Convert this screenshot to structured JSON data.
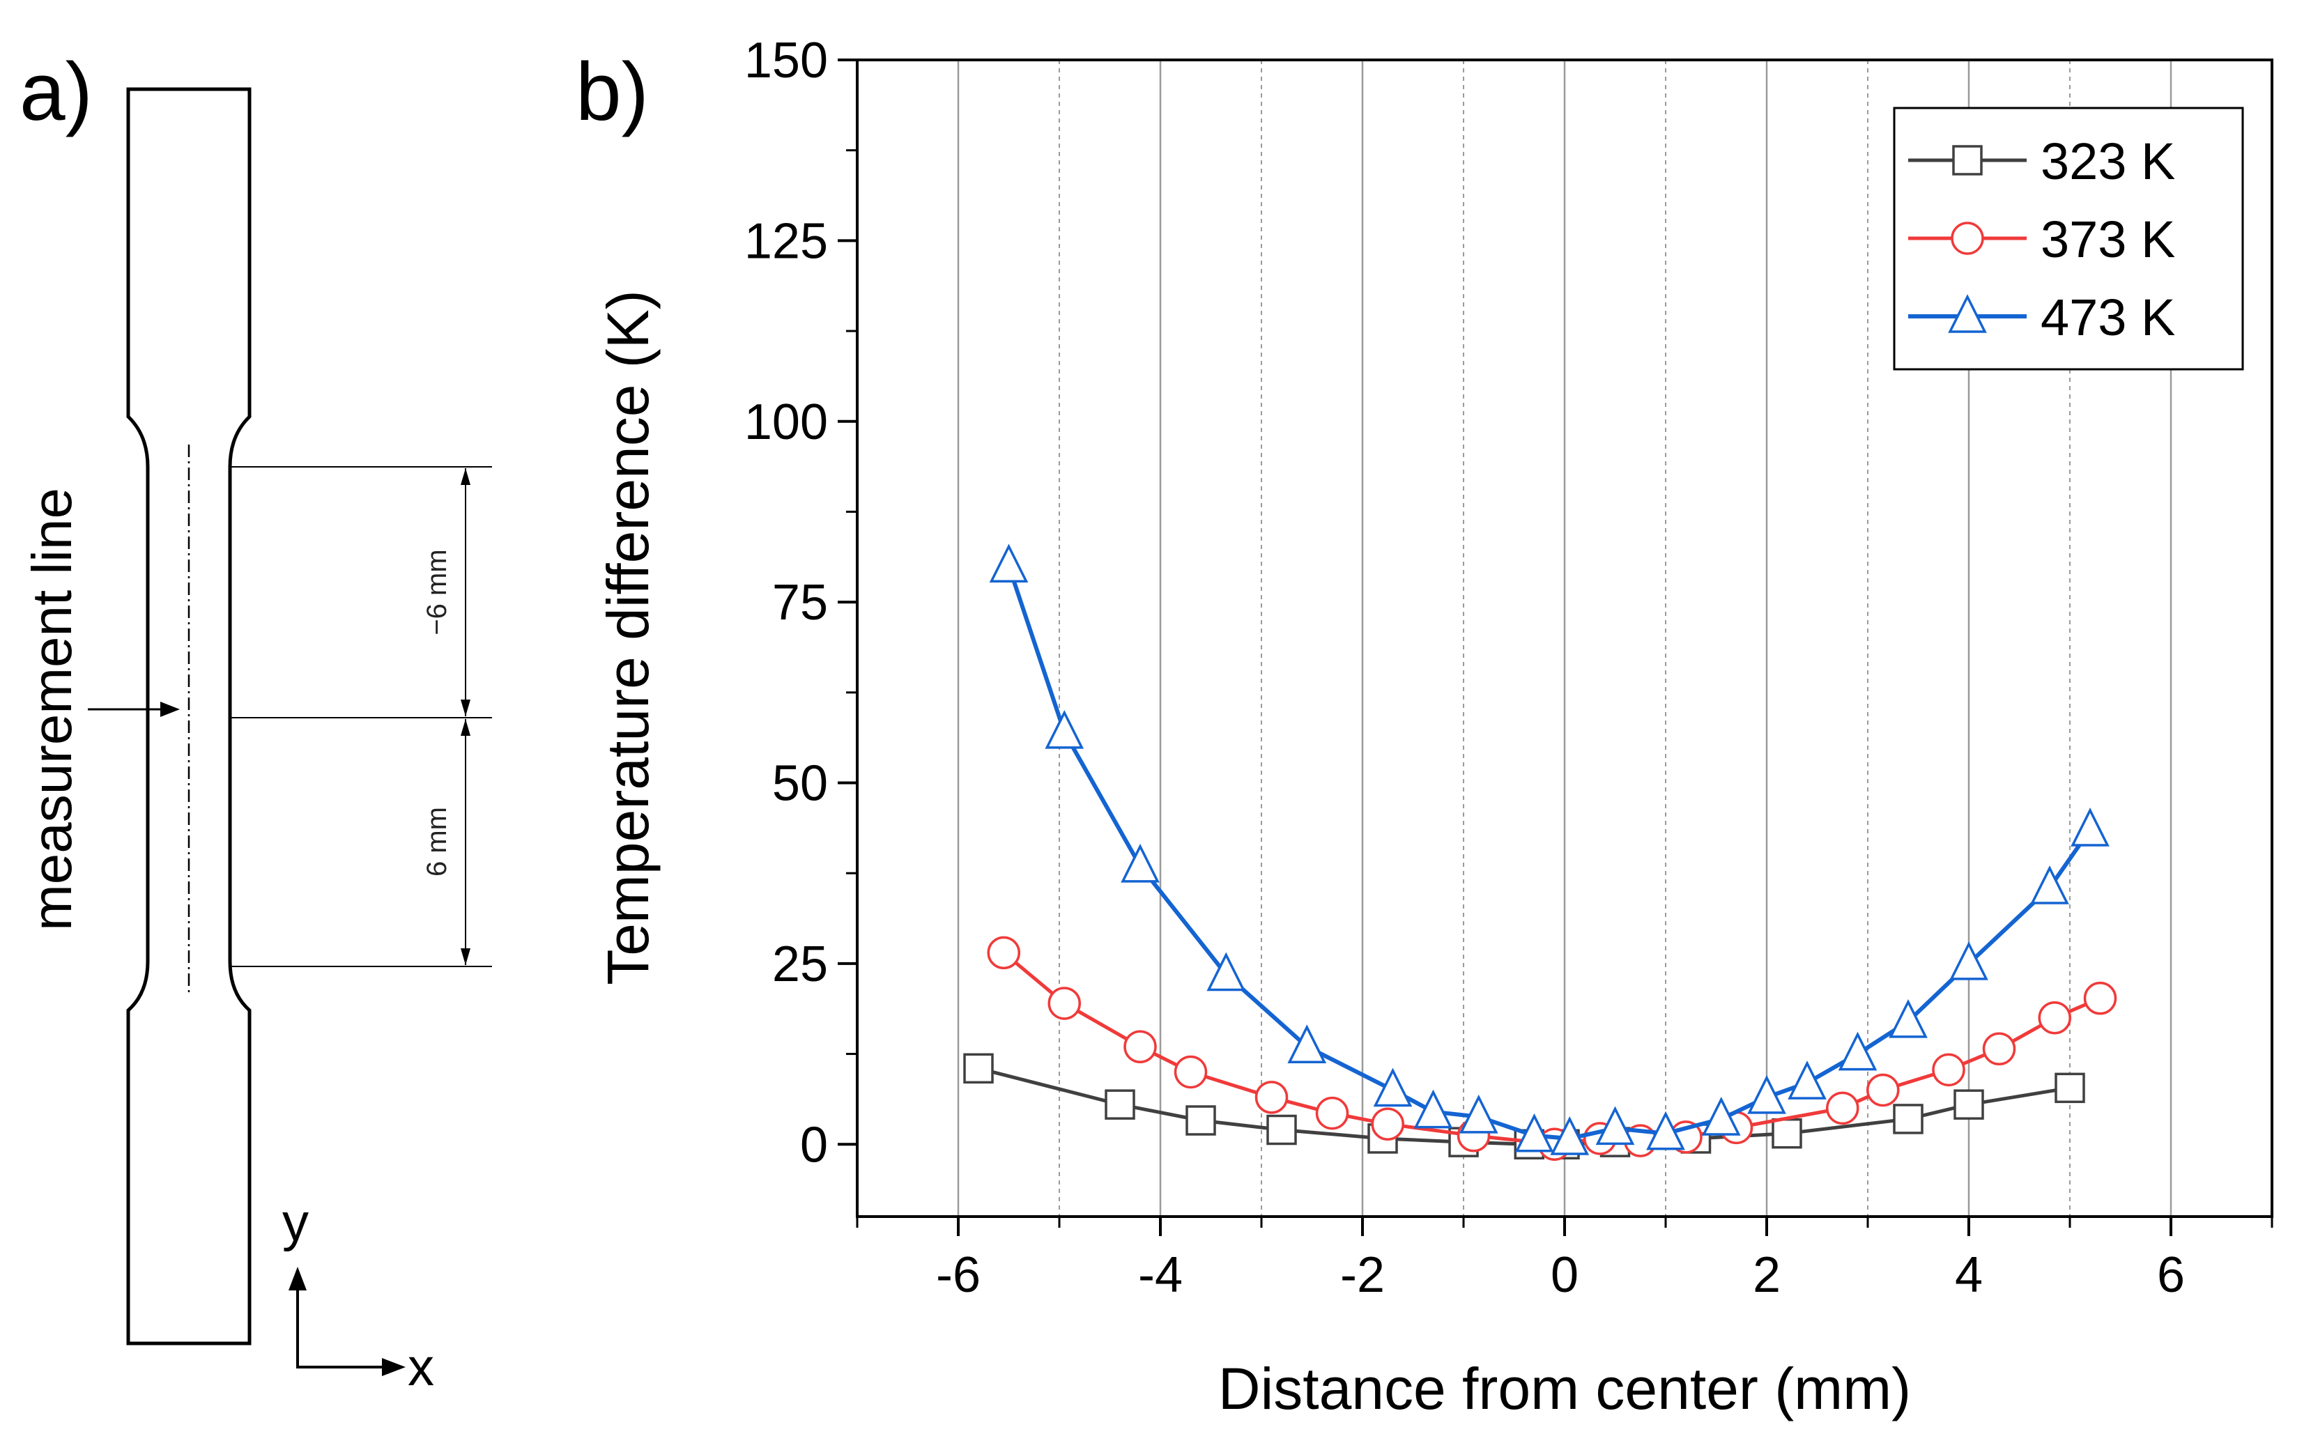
{
  "panel_a": {
    "label": "a)",
    "measurement_label": "measurement line",
    "dim_upper": "−6 mm",
    "dim_lower": "6 mm",
    "axis_x": "x",
    "axis_y": "y"
  },
  "panel_b": {
    "label": "b)"
  },
  "colors": {
    "s323": "#404040",
    "s373": "#f03a3a",
    "s473": "#1464d2",
    "marker_fill": "#ffffff",
    "grid": "#9a9a9a"
  },
  "chart_data": {
    "type": "line",
    "title": "",
    "xlabel": "Distance from center (mm)",
    "ylabel": "Temperature difference (K)",
    "xlim": [
      -7,
      7
    ],
    "ylim": [
      -10,
      150
    ],
    "xticks": [
      -6,
      -4,
      -2,
      0,
      2,
      4,
      6
    ],
    "xtick_labels": [
      "-6",
      "-4",
      "-2",
      "0",
      "2",
      "4",
      "6"
    ],
    "yticks": [
      0,
      25,
      50,
      75,
      100,
      125,
      150
    ],
    "ytick_labels": [
      "0",
      "25",
      "50",
      "75",
      "100",
      "125",
      "150"
    ],
    "grid": true,
    "legend_position": "top-right",
    "series": [
      {
        "name": "323 K",
        "marker": "square",
        "color": "#404040",
        "x": [
          -5.8,
          -4.4,
          -3.6,
          -2.8,
          -1.8,
          -1.0,
          -0.35,
          0.0,
          0.5,
          1.3,
          2.2,
          3.4,
          4.0,
          5.0
        ],
        "y": [
          10.5,
          5.5,
          3.3,
          2.0,
          0.8,
          0.3,
          0.0,
          0.0,
          0.3,
          0.8,
          1.5,
          3.5,
          5.5,
          7.8
        ]
      },
      {
        "name": "373 K",
        "marker": "circle",
        "color": "#f03a3a",
        "x": [
          -5.55,
          -4.95,
          -4.2,
          -3.7,
          -2.9,
          -2.3,
          -1.75,
          -0.9,
          -0.1,
          0.35,
          0.75,
          1.2,
          1.7,
          2.75,
          3.15,
          3.8,
          4.3,
          4.85,
          5.3
        ],
        "y": [
          26.5,
          19.5,
          13.5,
          10.0,
          6.5,
          4.3,
          2.8,
          1.2,
          0.0,
          0.8,
          0.5,
          1.0,
          2.3,
          5.0,
          7.5,
          10.3,
          13.2,
          17.5,
          20.2
        ]
      },
      {
        "name": "473 K",
        "marker": "triangle",
        "color": "#1464d2",
        "x": [
          -5.5,
          -4.95,
          -4.2,
          -3.35,
          -2.55,
          -1.7,
          -1.3,
          -0.85,
          -0.3,
          0.05,
          0.5,
          1.0,
          1.55,
          2.0,
          2.4,
          2.9,
          3.4,
          4.0,
          4.8,
          5.2
        ],
        "y": [
          80.0,
          57.0,
          38.5,
          23.5,
          13.5,
          7.5,
          4.5,
          3.8,
          1.2,
          0.8,
          2.2,
          1.5,
          3.5,
          6.5,
          8.5,
          12.5,
          17.0,
          25.0,
          35.5,
          43.5
        ]
      }
    ]
  }
}
